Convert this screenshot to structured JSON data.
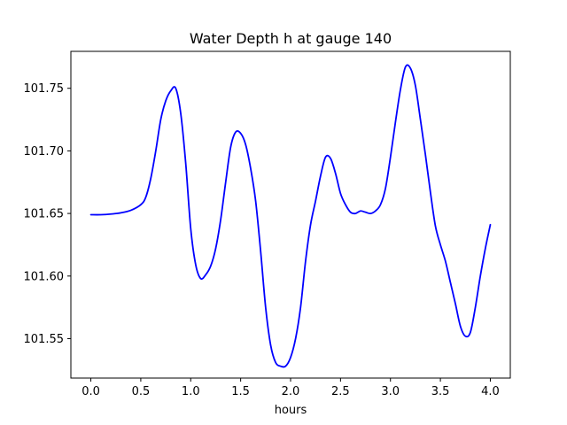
{
  "chart_data": {
    "type": "line",
    "title": "Water Depth h at gauge 140",
    "xlabel": "hours",
    "ylabel": "",
    "xlim": [
      -0.2,
      4.2
    ],
    "ylim": [
      101.5185,
      101.7795
    ],
    "x_ticks": [
      0.0,
      0.5,
      1.0,
      1.5,
      2.0,
      2.5,
      3.0,
      3.5,
      4.0
    ],
    "x_tick_labels": [
      "0.0",
      "0.5",
      "1.0",
      "1.5",
      "2.0",
      "2.5",
      "3.0",
      "3.5",
      "4.0"
    ],
    "y_ticks": [
      101.55,
      101.6,
      101.65,
      101.7,
      101.75
    ],
    "y_tick_labels": [
      "101.55",
      "101.60",
      "101.65",
      "101.70",
      "101.75"
    ],
    "grid": false,
    "series": [
      {
        "color": "#0000ff",
        "x": [
          0.0,
          0.1,
          0.2,
          0.3,
          0.4,
          0.5,
          0.55,
          0.6,
          0.65,
          0.7,
          0.75,
          0.8,
          0.85,
          0.9,
          0.95,
          1.0,
          1.05,
          1.1,
          1.15,
          1.2,
          1.25,
          1.3,
          1.35,
          1.4,
          1.45,
          1.5,
          1.55,
          1.6,
          1.65,
          1.7,
          1.75,
          1.8,
          1.85,
          1.9,
          1.95,
          2.0,
          2.05,
          2.1,
          2.15,
          2.2,
          2.25,
          2.3,
          2.35,
          2.4,
          2.45,
          2.5,
          2.55,
          2.6,
          2.65,
          2.7,
          2.75,
          2.8,
          2.85,
          2.9,
          2.95,
          3.0,
          3.05,
          3.1,
          3.15,
          3.2,
          3.25,
          3.3,
          3.35,
          3.4,
          3.45,
          3.5,
          3.55,
          3.6,
          3.65,
          3.7,
          3.75,
          3.8,
          3.85,
          3.9,
          3.95,
          4.0
        ],
        "y": [
          101.649,
          101.649,
          101.6495,
          101.6505,
          101.6525,
          101.657,
          101.663,
          101.678,
          101.7,
          101.725,
          101.74,
          101.748,
          101.75,
          101.73,
          101.69,
          101.638,
          101.609,
          101.598,
          101.601,
          101.608,
          101.622,
          101.645,
          101.675,
          101.703,
          101.715,
          101.714,
          101.705,
          101.686,
          101.66,
          101.62,
          101.575,
          101.545,
          101.531,
          101.528,
          101.528,
          101.535,
          101.55,
          101.575,
          101.612,
          101.641,
          101.66,
          101.68,
          101.695,
          101.694,
          101.682,
          101.666,
          101.657,
          101.651,
          101.65,
          101.652,
          101.651,
          101.65,
          101.652,
          101.657,
          101.67,
          101.695,
          101.723,
          101.749,
          101.767,
          101.766,
          101.752,
          101.725,
          101.697,
          101.667,
          101.64,
          101.625,
          101.612,
          101.595,
          101.578,
          101.56,
          101.552,
          101.555,
          101.575,
          101.6,
          101.622,
          101.641
        ]
      }
    ]
  }
}
